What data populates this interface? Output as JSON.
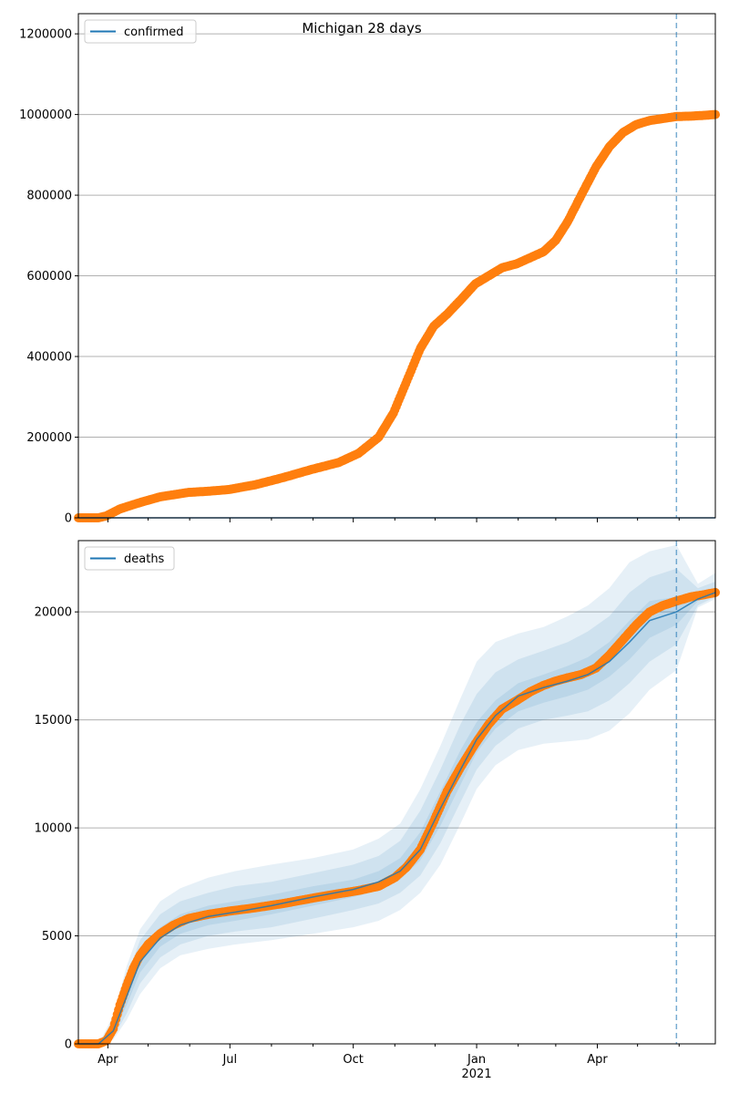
{
  "suptitle": "Michigan 28 days",
  "colors": {
    "observed": "#ff7f0e",
    "model": "#1f77b4",
    "band": "#1f77b4",
    "grid": "#b0b0b0",
    "axis": "#000000"
  },
  "chart_data": [
    {
      "type": "line",
      "legend": "confirmed",
      "legend_placement": "upper left",
      "ylim": [
        0,
        1250000
      ],
      "yticks": [
        0,
        200000,
        400000,
        600000,
        800000,
        1000000,
        1200000
      ],
      "ytick_labels": [
        "0",
        "200000",
        "400000",
        "600000",
        "800000",
        "1000000",
        "1200000"
      ],
      "grid": "horizontal",
      "xlim": [
        "2020-03-10",
        "2021-06-28"
      ],
      "forecast_start": "2021-05-30",
      "model_series": {
        "name": "confirmed",
        "x": [
          "2020-03-10",
          "2021-06-28"
        ],
        "y": [
          0,
          0
        ]
      },
      "observed": {
        "x": [
          "2020-03-10",
          "2020-03-25",
          "2020-03-31",
          "2020-04-10",
          "2020-04-25",
          "2020-05-10",
          "2020-05-31",
          "2020-06-15",
          "2020-06-30",
          "2020-07-20",
          "2020-08-10",
          "2020-08-31",
          "2020-09-20",
          "2020-10-05",
          "2020-10-20",
          "2020-10-31",
          "2020-11-10",
          "2020-11-20",
          "2020-11-30",
          "2020-12-10",
          "2020-12-20",
          "2020-12-31",
          "2021-01-10",
          "2021-01-20",
          "2021-01-31",
          "2021-02-10",
          "2021-02-20",
          "2021-03-01",
          "2021-03-10",
          "2021-03-20",
          "2021-03-31",
          "2021-04-10",
          "2021-04-20",
          "2021-04-30",
          "2021-05-10",
          "2021-05-20",
          "2021-05-30",
          "2021-06-10",
          "2021-06-20",
          "2021-06-28"
        ],
        "y": [
          0,
          0,
          5000,
          22000,
          38000,
          52000,
          63000,
          66000,
          70000,
          82000,
          100000,
          120000,
          137000,
          160000,
          200000,
          260000,
          340000,
          420000,
          475000,
          505000,
          540000,
          580000,
          600000,
          620000,
          630000,
          645000,
          660000,
          688000,
          735000,
          800000,
          870000,
          920000,
          955000,
          975000,
          985000,
          990000,
          995000,
          996000,
          998000,
          1000000
        ]
      }
    },
    {
      "type": "line",
      "legend": "deaths",
      "legend_placement": "upper left",
      "ylim": [
        0,
        23300
      ],
      "yticks": [
        0,
        5000,
        10000,
        15000,
        20000
      ],
      "ytick_labels": [
        "0",
        "5000",
        "10000",
        "15000",
        "20000"
      ],
      "grid": "horizontal",
      "xlim": [
        "2020-03-10",
        "2021-06-28"
      ],
      "xticks": [
        "2020-04-01",
        "2020-07-01",
        "2020-10-01",
        "2021-01-01",
        "2021-04-01"
      ],
      "xtick_labels": [
        "Apr",
        "Jul",
        "Oct",
        "Jan",
        "Apr"
      ],
      "xtick_year_label": "2021",
      "forecast_start": "2021-05-30",
      "model_series": {
        "name": "deaths",
        "x": [
          "2020-03-10",
          "2020-03-25",
          "2020-04-05",
          "2020-04-15",
          "2020-04-25",
          "2020-05-10",
          "2020-05-25",
          "2020-06-15",
          "2020-07-05",
          "2020-08-01",
          "2020-09-01",
          "2020-10-01",
          "2020-10-20",
          "2020-11-05",
          "2020-11-20",
          "2020-12-05",
          "2020-12-20",
          "2021-01-01",
          "2021-01-15",
          "2021-02-01",
          "2021-02-20",
          "2021-03-10",
          "2021-03-25",
          "2021-04-10",
          "2021-04-25",
          "2021-05-10",
          "2021-05-30",
          "2021-06-15",
          "2021-06-28"
        ],
        "y": [
          0,
          0,
          600,
          2200,
          3800,
          4900,
          5500,
          5900,
          6100,
          6400,
          6800,
          7150,
          7500,
          8000,
          9000,
          10900,
          12700,
          14100,
          15200,
          16100,
          16500,
          16800,
          17100,
          17700,
          18600,
          19600,
          20000,
          20600,
          20900
        ]
      },
      "bands": [
        {
          "x": [
            "2020-03-10",
            "2020-03-25",
            "2020-04-05",
            "2020-04-15",
            "2020-04-25",
            "2020-05-10",
            "2020-05-25",
            "2020-06-15",
            "2020-07-05",
            "2020-08-01",
            "2020-09-01",
            "2020-10-01",
            "2020-10-20",
            "2020-11-05",
            "2020-11-20",
            "2020-12-05",
            "2020-12-20",
            "2021-01-01",
            "2021-01-15",
            "2021-02-01",
            "2021-02-20",
            "2021-03-10",
            "2021-03-25",
            "2021-04-10",
            "2021-04-25",
            "2021-05-10",
            "2021-05-30",
            "2021-06-15",
            "2021-06-28"
          ],
          "lower": [
            0,
            0,
            200,
            1100,
            2300,
            3500,
            4100,
            4400,
            4600,
            4800,
            5100,
            5400,
            5700,
            6200,
            7000,
            8300,
            10200,
            11800,
            12900,
            13600,
            13900,
            14000,
            14100,
            14500,
            15300,
            16400,
            17300,
            20200,
            20600
          ],
          "upper": [
            0,
            0,
            1300,
            3600,
            5300,
            6600,
            7200,
            7700,
            8000,
            8300,
            8600,
            9000,
            9500,
            10200,
            11800,
            13800,
            16000,
            17700,
            18600,
            19000,
            19300,
            19800,
            20300,
            21100,
            22300,
            22800,
            23100,
            21300,
            21800
          ]
        },
        {
          "x": [
            "2020-03-10",
            "2020-03-25",
            "2020-04-05",
            "2020-04-15",
            "2020-04-25",
            "2020-05-10",
            "2020-05-25",
            "2020-06-15",
            "2020-07-05",
            "2020-08-01",
            "2020-09-01",
            "2020-10-01",
            "2020-10-20",
            "2020-11-05",
            "2020-11-20",
            "2020-12-05",
            "2020-12-20",
            "2021-01-01",
            "2021-01-15",
            "2021-02-01",
            "2021-02-20",
            "2021-03-10",
            "2021-03-25",
            "2021-04-10",
            "2021-04-25",
            "2021-05-10",
            "2021-05-30",
            "2021-06-15",
            "2021-06-28"
          ],
          "lower": [
            0,
            0,
            300,
            1400,
            2800,
            4000,
            4600,
            5000,
            5200,
            5400,
            5800,
            6200,
            6500,
            7000,
            7800,
            9300,
            11200,
            12700,
            13800,
            14600,
            15000,
            15200,
            15400,
            15900,
            16700,
            17700,
            18500,
            20300,
            20700
          ],
          "upper": [
            0,
            0,
            1000,
            3100,
            4800,
            6000,
            6600,
            7000,
            7300,
            7500,
            7900,
            8300,
            8700,
            9400,
            10800,
            12700,
            14800,
            16200,
            17200,
            17800,
            18200,
            18600,
            19100,
            19800,
            20900,
            21600,
            22000,
            21100,
            21400
          ]
        },
        {
          "x": [
            "2020-03-10",
            "2020-03-25",
            "2020-04-05",
            "2020-04-15",
            "2020-04-25",
            "2020-05-10",
            "2020-05-25",
            "2020-06-15",
            "2020-07-05",
            "2020-08-01",
            "2020-09-01",
            "2020-10-01",
            "2020-10-20",
            "2020-11-05",
            "2020-11-20",
            "2020-12-05",
            "2020-12-20",
            "2021-01-01",
            "2021-01-15",
            "2021-02-01",
            "2021-02-20",
            "2021-03-10",
            "2021-03-25",
            "2021-04-10",
            "2021-04-25",
            "2021-05-10",
            "2021-05-30",
            "2021-06-15",
            "2021-06-28"
          ],
          "lower": [
            0,
            0,
            450,
            1800,
            3300,
            4500,
            5100,
            5500,
            5700,
            6000,
            6400,
            6800,
            7100,
            7600,
            8500,
            10100,
            12000,
            13500,
            14600,
            15400,
            15800,
            16100,
            16400,
            17000,
            17800,
            18800,
            19400,
            20500,
            20800
          ],
          "upper": [
            0,
            0,
            750,
            2600,
            4300,
            5400,
            6000,
            6400,
            6600,
            6900,
            7300,
            7600,
            8000,
            8600,
            9800,
            11700,
            13600,
            14900,
            15900,
            16700,
            17100,
            17500,
            17900,
            18600,
            19600,
            20500,
            20700,
            20800,
            21100
          ]
        }
      ],
      "observed": {
        "x": [
          "2020-03-10",
          "2020-03-25",
          "2020-03-31",
          "2020-04-05",
          "2020-04-10",
          "2020-04-15",
          "2020-04-20",
          "2020-04-25",
          "2020-05-01",
          "2020-05-10",
          "2020-05-20",
          "2020-05-31",
          "2020-06-15",
          "2020-07-01",
          "2020-07-20",
          "2020-08-10",
          "2020-09-01",
          "2020-09-20",
          "2020-10-05",
          "2020-10-20",
          "2020-11-01",
          "2020-11-10",
          "2020-11-20",
          "2020-11-30",
          "2020-12-10",
          "2020-12-20",
          "2020-12-31",
          "2021-01-10",
          "2021-01-20",
          "2021-01-31",
          "2021-02-10",
          "2021-02-20",
          "2021-03-01",
          "2021-03-10",
          "2021-03-20",
          "2021-03-31",
          "2021-04-10",
          "2021-04-20",
          "2021-04-30",
          "2021-05-10",
          "2021-05-20",
          "2021-05-30",
          "2021-06-10",
          "2021-06-20",
          "2021-06-28"
        ],
        "y": [
          0,
          0,
          150,
          700,
          1800,
          2700,
          3500,
          4100,
          4600,
          5100,
          5500,
          5800,
          6000,
          6150,
          6300,
          6500,
          6750,
          6950,
          7100,
          7300,
          7700,
          8200,
          9000,
          10300,
          11700,
          12800,
          13900,
          14800,
          15500,
          15900,
          16300,
          16600,
          16800,
          16950,
          17100,
          17400,
          18000,
          18700,
          19400,
          20000,
          20300,
          20500,
          20700,
          20800,
          20900
        ]
      }
    }
  ]
}
